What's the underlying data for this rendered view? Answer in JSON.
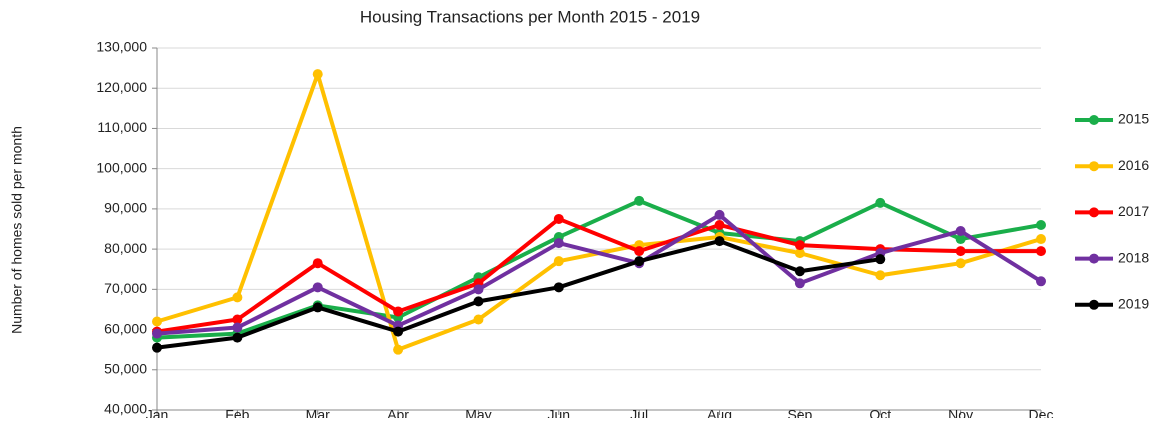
{
  "chart_data": {
    "type": "line",
    "title": "Housing Transactions per Month  2015 - 2019",
    "y_label": "Number of homes sold per month",
    "categories": [
      "Jan",
      "Feb",
      "Mar",
      "Apr",
      "May",
      "Jun",
      "Jul",
      "Aug",
      "Sep",
      "Oct",
      "Nov",
      "Dec"
    ],
    "ylim": [
      40000,
      130000
    ],
    "yticks": [
      {
        "value": 40000,
        "label": "40,000"
      },
      {
        "value": 50000,
        "label": "50,000"
      },
      {
        "value": 60000,
        "label": "60,000"
      },
      {
        "value": 70000,
        "label": "70,000"
      },
      {
        "value": 80000,
        "label": "80,000"
      },
      {
        "value": 90000,
        "label": "90,000"
      },
      {
        "value": 100000,
        "label": "100,000"
      },
      {
        "value": 110000,
        "label": "110,000"
      },
      {
        "value": 120000,
        "label": "120,000"
      },
      {
        "value": 130000,
        "label": "130,000"
      }
    ],
    "grid": true,
    "legend": "right",
    "series": [
      {
        "name": "2015",
        "color": "#1aae4a",
        "values": [
          58000,
          59000,
          66000,
          63000,
          73000,
          83000,
          92000,
          84000,
          82000,
          91500,
          82500,
          86000
        ]
      },
      {
        "name": "2016",
        "color": "#ffc000",
        "values": [
          62000,
          68000,
          123500,
          55000,
          62500,
          77000,
          81000,
          83000,
          79000,
          73500,
          76500,
          82500
        ]
      },
      {
        "name": "2017",
        "color": "#ff0000",
        "values": [
          59500,
          62500,
          76500,
          64500,
          71500,
          87500,
          79500,
          86000,
          81000,
          80000,
          79500,
          79500
        ]
      },
      {
        "name": "2018",
        "color": "#7030a0",
        "values": [
          59000,
          60500,
          70500,
          61000,
          70000,
          81500,
          76500,
          88500,
          71500,
          79000,
          84500,
          72000
        ]
      },
      {
        "name": "2019",
        "color": "#000000",
        "values": [
          55500,
          58000,
          65500,
          59500,
          67000,
          70500,
          77000,
          82000,
          74500,
          77500,
          null,
          null
        ]
      }
    ]
  }
}
